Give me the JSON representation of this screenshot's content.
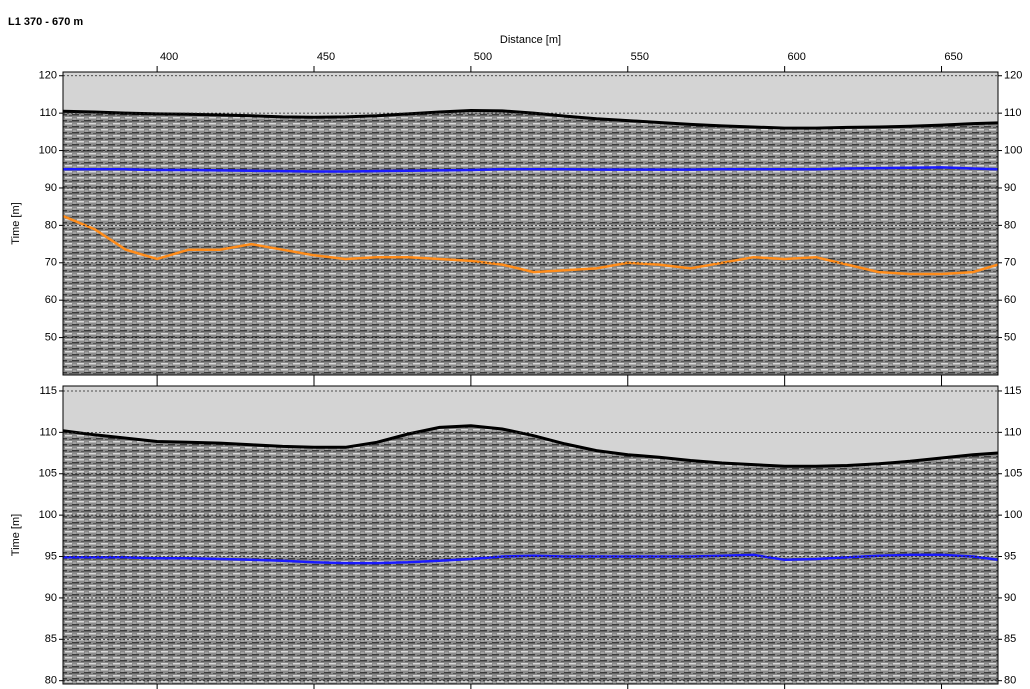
{
  "header": {
    "title": "L1 370 - 670 m"
  },
  "chart_data": [
    {
      "type": "line",
      "xlabel": "Distance [m]",
      "ylabel": "Time [m]",
      "x": [
        370,
        380,
        390,
        400,
        410,
        420,
        430,
        440,
        450,
        460,
        470,
        480,
        490,
        500,
        510,
        520,
        530,
        540,
        550,
        560,
        570,
        580,
        590,
        600,
        610,
        620,
        630,
        640,
        650,
        660,
        668
      ],
      "xlim": [
        370,
        668
      ],
      "xticks": [
        400,
        450,
        500,
        550,
        600,
        650
      ],
      "ylim": [
        40,
        121
      ],
      "yticks": [
        50,
        60,
        70,
        80,
        90,
        100,
        110,
        120
      ],
      "grid": true,
      "series": [
        {
          "color": "#000000",
          "fill": "#d4d4d4",
          "values": [
            110.5,
            110.3,
            110,
            109.8,
            109.7,
            109.5,
            109.3,
            109,
            108.9,
            109,
            109.3,
            109.8,
            110.3,
            110.7,
            110.6,
            110,
            109.2,
            108.5,
            108,
            107.5,
            107,
            106.6,
            106.3,
            106,
            106,
            106.2,
            106.3,
            106.5,
            106.8,
            107.2,
            107.4
          ]
        },
        {
          "color": "#1a1aff",
          "values": [
            95,
            95,
            95,
            94.8,
            94.8,
            94.7,
            94.6,
            94.5,
            94.4,
            94.4,
            94.5,
            94.6,
            94.7,
            94.8,
            95,
            95,
            95,
            94.9,
            94.9,
            94.9,
            94.9,
            95,
            95,
            95,
            95,
            95.2,
            95.3,
            95.4,
            95.5,
            95.2,
            95
          ]
        },
        {
          "color": "#ff8c1a",
          "values": [
            82.5,
            79,
            73.5,
            71,
            73.5,
            73.5,
            75,
            73.5,
            72,
            71,
            71.5,
            71.5,
            71,
            70.5,
            69.5,
            67.5,
            68,
            68.5,
            70,
            69.5,
            68.5,
            70,
            71.5,
            71,
            71.5,
            69.5,
            67.5,
            67,
            67,
            67.5,
            69.5
          ]
        }
      ]
    },
    {
      "type": "line",
      "ylabel": "Time [m]",
      "x": [
        370,
        380,
        390,
        400,
        410,
        420,
        430,
        440,
        450,
        460,
        470,
        480,
        490,
        500,
        510,
        520,
        530,
        540,
        550,
        560,
        570,
        580,
        590,
        600,
        610,
        620,
        630,
        640,
        650,
        660,
        668
      ],
      "xlim": [
        370,
        668
      ],
      "xticks": [
        400,
        450,
        500,
        550,
        600,
        650
      ],
      "ylim": [
        79.6,
        115.6
      ],
      "yticks": [
        80,
        85,
        90,
        95,
        100,
        105,
        110,
        115
      ],
      "grid": true,
      "series": [
        {
          "color": "#000000",
          "fill": "#d4d4d4",
          "values": [
            110.2,
            109.7,
            109.3,
            108.9,
            108.8,
            108.7,
            108.5,
            108.3,
            108.2,
            108.2,
            108.8,
            109.8,
            110.6,
            110.8,
            110.4,
            109.6,
            108.6,
            107.8,
            107.3,
            107,
            106.6,
            106.3,
            106.1,
            105.9,
            105.9,
            106,
            106.2,
            106.5,
            106.9,
            107.3,
            107.5
          ]
        },
        {
          "color": "#1a1aff",
          "values": [
            94.9,
            94.9,
            94.9,
            94.8,
            94.8,
            94.7,
            94.6,
            94.5,
            94.3,
            94.2,
            94.2,
            94.3,
            94.5,
            94.7,
            95,
            95.1,
            95,
            95,
            95,
            95,
            95,
            95.1,
            95.2,
            94.6,
            94.7,
            94.9,
            95.1,
            95.2,
            95.2,
            95,
            94.6
          ]
        }
      ]
    }
  ]
}
